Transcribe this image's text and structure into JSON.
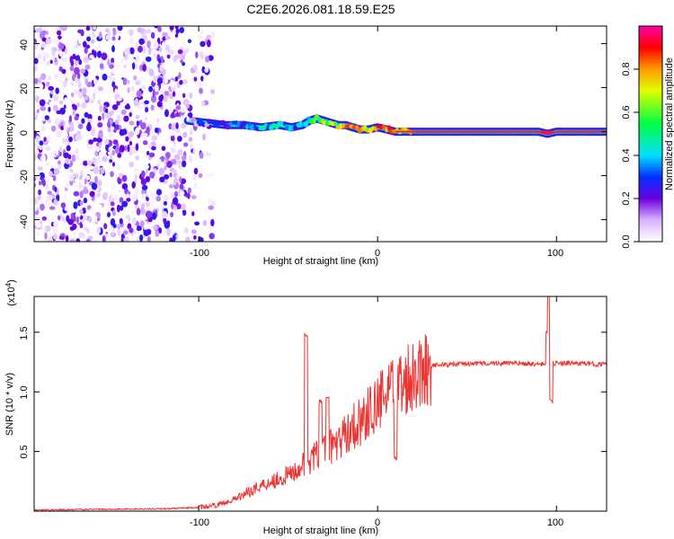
{
  "chart_data": [
    {
      "type": "heatmap",
      "title": "C2E6.2026.081.18.59.E25",
      "xlabel": "Height of straight line (km)",
      "ylabel": "Frequency (Hz)",
      "xlim": [
        -192,
        128
      ],
      "ylim": [
        -50,
        48
      ],
      "xticks": [
        -100,
        0,
        100
      ],
      "yticks": [
        -40,
        -20,
        0,
        20,
        40
      ],
      "colorbar": {
        "label": "Normalized spectral amplitude",
        "range": [
          0,
          1
        ],
        "ticks": [
          "0.0",
          "0.2",
          "0.4",
          "0.6",
          "0.8"
        ]
      },
      "noise_region_x": [
        -192,
        -92
      ],
      "ridge": {
        "x": [
          -106,
          -95,
          -85,
          -75,
          -65,
          -55,
          -48,
          -42,
          -38,
          -34,
          -30,
          -26,
          -22,
          -18,
          -14,
          -10,
          -5,
          0,
          5,
          10,
          15,
          25,
          40,
          60,
          80,
          90,
          95,
          100,
          110,
          128
        ],
        "frequency": [
          5,
          4,
          3,
          3,
          2,
          3,
          2,
          3,
          5,
          6,
          5,
          4,
          3,
          3,
          2,
          1,
          1,
          2,
          1,
          0,
          0,
          0,
          0,
          0,
          0,
          0,
          -1,
          0,
          0,
          0
        ],
        "amplitude": [
          0.25,
          0.35,
          0.4,
          0.45,
          0.5,
          0.5,
          0.45,
          0.55,
          0.6,
          0.65,
          0.75,
          0.8,
          0.85,
          0.88,
          0.9,
          0.9,
          0.9,
          0.92,
          0.93,
          0.95,
          0.96,
          0.97,
          0.97,
          0.97,
          0.97,
          0.97,
          0.95,
          0.97,
          0.97,
          0.97
        ]
      }
    },
    {
      "type": "line",
      "xlabel": "Height of straight line (km)",
      "ylabel": "SNR (10 * v/v)",
      "y_multiplier": "(x10^4)",
      "xlim": [
        -192,
        128
      ],
      "ylim": [
        0,
        1.8
      ],
      "xticks": [
        -100,
        0,
        100
      ],
      "yticks": [
        0.5,
        1.0,
        1.5
      ],
      "ytick_labels": [
        "0.5",
        "1.0",
        "1.5"
      ],
      "color": "#ee3333",
      "envelope": {
        "x": [
          -192,
          -120,
          -100,
          -90,
          -80,
          -70,
          -60,
          -50,
          -40,
          -32,
          -25,
          -20,
          -15,
          -10,
          -5,
          0,
          5,
          10,
          15,
          20,
          25,
          30,
          40,
          60,
          80,
          90,
          100,
          110,
          128
        ],
        "snr": [
          0.01,
          0.02,
          0.03,
          0.05,
          0.1,
          0.18,
          0.25,
          0.3,
          0.4,
          0.5,
          0.55,
          0.6,
          0.7,
          0.75,
          0.82,
          0.9,
          0.97,
          1.03,
          1.1,
          1.16,
          1.2,
          1.22,
          1.23,
          1.24,
          1.24,
          1.23,
          1.24,
          1.24,
          1.23
        ]
      },
      "spikes": [
        {
          "x": -40,
          "snr": 1.47
        },
        {
          "x": -32,
          "snr": 0.92
        },
        {
          "x": -28,
          "snr": 0.95
        },
        {
          "x": 10,
          "snr": 0.45
        },
        {
          "x": 95,
          "snr": 1.5
        },
        {
          "x": 96,
          "snr": 1.82
        },
        {
          "x": 97,
          "snr": 0.92
        }
      ]
    }
  ]
}
